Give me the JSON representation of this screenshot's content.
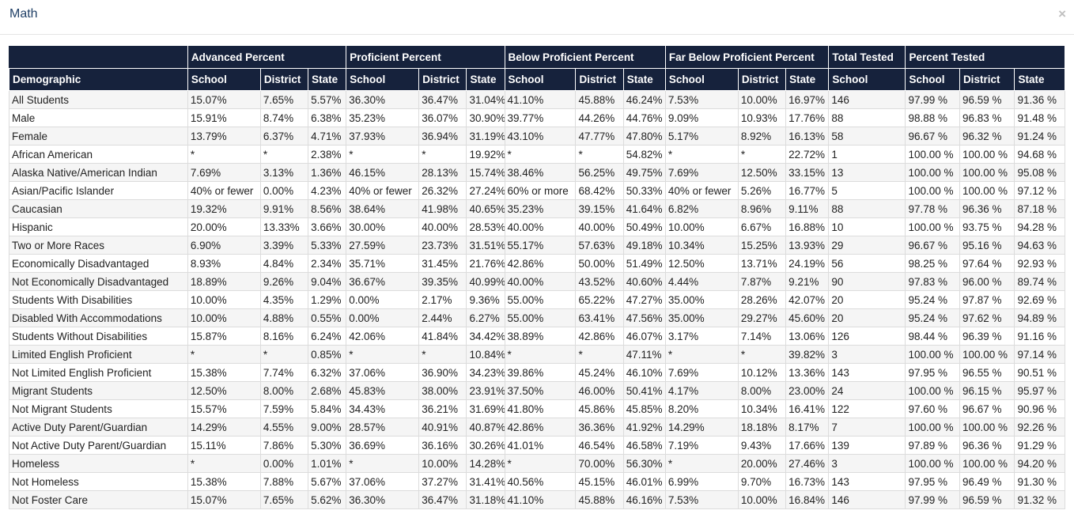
{
  "modal": {
    "title": "Math",
    "close_label": "×"
  },
  "table": {
    "groups": [
      {
        "label": "",
        "span": 1
      },
      {
        "label": "Advanced Percent",
        "span": 3
      },
      {
        "label": "Proficient Percent",
        "span": 3
      },
      {
        "label": "Below Proficient Percent",
        "span": 3
      },
      {
        "label": "Far Below Proficient Percent",
        "span": 3
      },
      {
        "label": "Total Tested",
        "span": 1
      },
      {
        "label": "Percent Tested",
        "span": 3
      }
    ],
    "columns": [
      "Demographic",
      "School",
      "District",
      "State",
      "School",
      "District",
      "State",
      "School",
      "District",
      "State",
      "School",
      "District",
      "State",
      "School",
      "School",
      "District",
      "State"
    ],
    "rows": [
      [
        "All Students",
        "15.07%",
        "7.65%",
        "5.57%",
        "36.30%",
        "36.47%",
        "31.04%",
        "41.10%",
        "45.88%",
        "46.24%",
        "7.53%",
        "10.00%",
        "16.97%",
        "146",
        "97.99 %",
        "96.59 %",
        "91.36 %"
      ],
      [
        "Male",
        "15.91%",
        "8.74%",
        "6.38%",
        "35.23%",
        "36.07%",
        "30.90%",
        "39.77%",
        "44.26%",
        "44.76%",
        "9.09%",
        "10.93%",
        "17.76%",
        "88",
        "98.88 %",
        "96.83 %",
        "91.48 %"
      ],
      [
        "Female",
        "13.79%",
        "6.37%",
        "4.71%",
        "37.93%",
        "36.94%",
        "31.19%",
        "43.10%",
        "47.77%",
        "47.80%",
        "5.17%",
        "8.92%",
        "16.13%",
        "58",
        "96.67 %",
        "96.32 %",
        "91.24 %"
      ],
      [
        "African American",
        "*",
        "*",
        "2.38%",
        "*",
        "*",
        "19.92%",
        "*",
        "*",
        "54.82%",
        "*",
        "*",
        "22.72%",
        "1",
        "100.00 %",
        "100.00 %",
        "94.68 %"
      ],
      [
        "Alaska Native/American Indian",
        "7.69%",
        "3.13%",
        "1.36%",
        "46.15%",
        "28.13%",
        "15.74%",
        "38.46%",
        "56.25%",
        "49.75%",
        "7.69%",
        "12.50%",
        "33.15%",
        "13",
        "100.00 %",
        "100.00 %",
        "95.08 %"
      ],
      [
        "Asian/Pacific Islander",
        "40% or fewer",
        "0.00%",
        "4.23%",
        "40% or fewer",
        "26.32%",
        "27.24%",
        "60% or more",
        "68.42%",
        "50.33%",
        "40% or fewer",
        "5.26%",
        "16.77%",
        "5",
        "100.00 %",
        "100.00 %",
        "97.12 %"
      ],
      [
        "Caucasian",
        "19.32%",
        "9.91%",
        "8.56%",
        "38.64%",
        "41.98%",
        "40.65%",
        "35.23%",
        "39.15%",
        "41.64%",
        "6.82%",
        "8.96%",
        "9.11%",
        "88",
        "97.78 %",
        "96.36 %",
        "87.18 %"
      ],
      [
        "Hispanic",
        "20.00%",
        "13.33%",
        "3.66%",
        "30.00%",
        "40.00%",
        "28.53%",
        "40.00%",
        "40.00%",
        "50.49%",
        "10.00%",
        "6.67%",
        "16.88%",
        "10",
        "100.00 %",
        "93.75 %",
        "94.28 %"
      ],
      [
        "Two or More Races",
        "6.90%",
        "3.39%",
        "5.33%",
        "27.59%",
        "23.73%",
        "31.51%",
        "55.17%",
        "57.63%",
        "49.18%",
        "10.34%",
        "15.25%",
        "13.93%",
        "29",
        "96.67 %",
        "95.16 %",
        "94.63 %"
      ],
      [
        "Economically Disadvantaged",
        "8.93%",
        "4.84%",
        "2.34%",
        "35.71%",
        "31.45%",
        "21.76%",
        "42.86%",
        "50.00%",
        "51.49%",
        "12.50%",
        "13.71%",
        "24.19%",
        "56",
        "98.25 %",
        "97.64 %",
        "92.93 %"
      ],
      [
        "Not Economically Disadvantaged",
        "18.89%",
        "9.26%",
        "9.04%",
        "36.67%",
        "39.35%",
        "40.99%",
        "40.00%",
        "43.52%",
        "40.60%",
        "4.44%",
        "7.87%",
        "9.21%",
        "90",
        "97.83 %",
        "96.00 %",
        "89.74 %"
      ],
      [
        "Students With Disabilities",
        "10.00%",
        "4.35%",
        "1.29%",
        "0.00%",
        "2.17%",
        "9.36%",
        "55.00%",
        "65.22%",
        "47.27%",
        "35.00%",
        "28.26%",
        "42.07%",
        "20",
        "95.24 %",
        "97.87 %",
        "92.69 %"
      ],
      [
        "Disabled With Accommodations",
        "10.00%",
        "4.88%",
        "0.55%",
        "0.00%",
        "2.44%",
        "6.27%",
        "55.00%",
        "63.41%",
        "47.56%",
        "35.00%",
        "29.27%",
        "45.60%",
        "20",
        "95.24 %",
        "97.62 %",
        "94.89 %"
      ],
      [
        "Students Without Disabilities",
        "15.87%",
        "8.16%",
        "6.24%",
        "42.06%",
        "41.84%",
        "34.42%",
        "38.89%",
        "42.86%",
        "46.07%",
        "3.17%",
        "7.14%",
        "13.06%",
        "126",
        "98.44 %",
        "96.39 %",
        "91.16 %"
      ],
      [
        "Limited English Proficient",
        "*",
        "*",
        "0.85%",
        "*",
        "*",
        "10.84%",
        "*",
        "*",
        "47.11%",
        "*",
        "*",
        "39.82%",
        "3",
        "100.00 %",
        "100.00 %",
        "97.14 %"
      ],
      [
        "Not Limited English Proficient",
        "15.38%",
        "7.74%",
        "6.32%",
        "37.06%",
        "36.90%",
        "34.23%",
        "39.86%",
        "45.24%",
        "46.10%",
        "7.69%",
        "10.12%",
        "13.36%",
        "143",
        "97.95 %",
        "96.55 %",
        "90.51 %"
      ],
      [
        "Migrant Students",
        "12.50%",
        "8.00%",
        "2.68%",
        "45.83%",
        "38.00%",
        "23.91%",
        "37.50%",
        "46.00%",
        "50.41%",
        "4.17%",
        "8.00%",
        "23.00%",
        "24",
        "100.00 %",
        "96.15 %",
        "95.97 %"
      ],
      [
        "Not Migrant Students",
        "15.57%",
        "7.59%",
        "5.84%",
        "34.43%",
        "36.21%",
        "31.69%",
        "41.80%",
        "45.86%",
        "45.85%",
        "8.20%",
        "10.34%",
        "16.41%",
        "122",
        "97.60 %",
        "96.67 %",
        "90.96 %"
      ],
      [
        "Active Duty Parent/Guardian",
        "14.29%",
        "4.55%",
        "9.00%",
        "28.57%",
        "40.91%",
        "40.87%",
        "42.86%",
        "36.36%",
        "41.92%",
        "14.29%",
        "18.18%",
        "8.17%",
        "7",
        "100.00 %",
        "100.00 %",
        "92.26 %"
      ],
      [
        "Not Active Duty Parent/Guardian",
        "15.11%",
        "7.86%",
        "5.30%",
        "36.69%",
        "36.16%",
        "30.26%",
        "41.01%",
        "46.54%",
        "46.58%",
        "7.19%",
        "9.43%",
        "17.66%",
        "139",
        "97.89 %",
        "96.36 %",
        "91.29 %"
      ],
      [
        "Homeless",
        "*",
        "0.00%",
        "1.01%",
        "*",
        "10.00%",
        "14.28%",
        "*",
        "70.00%",
        "56.30%",
        "*",
        "20.00%",
        "27.46%",
        "3",
        "100.00 %",
        "100.00 %",
        "94.20 %"
      ],
      [
        "Not Homeless",
        "15.38%",
        "7.88%",
        "5.67%",
        "37.06%",
        "37.27%",
        "31.41%",
        "40.56%",
        "45.15%",
        "46.01%",
        "6.99%",
        "9.70%",
        "16.73%",
        "143",
        "97.95 %",
        "96.49 %",
        "91.30 %"
      ],
      [
        "Not Foster Care",
        "15.07%",
        "7.65%",
        "5.62%",
        "36.30%",
        "36.47%",
        "31.18%",
        "41.10%",
        "45.88%",
        "46.16%",
        "7.53%",
        "10.00%",
        "16.84%",
        "146",
        "97.99 %",
        "96.59 %",
        "91.32 %"
      ]
    ]
  },
  "colors": {
    "header_bg": "#16223c",
    "title": "#1f3f66",
    "row_alt": "#f5f5f5"
  }
}
